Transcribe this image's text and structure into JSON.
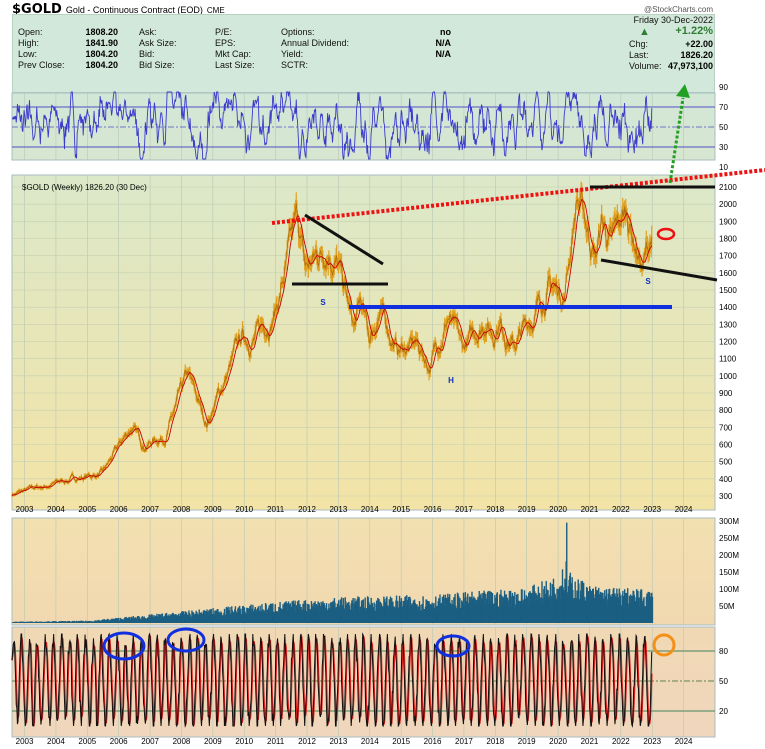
{
  "header": {
    "symbol": "$GOLD",
    "name": "Gold - Continuous Contract (EOD)",
    "exchange": "CME",
    "copyright": "@StockCharts.com"
  },
  "info": {
    "col1": [
      {
        "label": "Open:",
        "value": "1808.20"
      },
      {
        "label": "High:",
        "value": "1841.90"
      },
      {
        "label": "Low:",
        "value": "1804.20"
      },
      {
        "label": "Prev Close:",
        "value": "1804.20"
      }
    ],
    "col2": [
      {
        "label": "Ask:"
      },
      {
        "label": "Ask Size:"
      },
      {
        "label": "Bid:"
      },
      {
        "label": "Bid Size:"
      }
    ],
    "col3": [
      {
        "label": "P/E:"
      },
      {
        "label": "EPS:"
      },
      {
        "label": "Mkt Cap:"
      },
      {
        "label": "Last Size:"
      }
    ],
    "col4": [
      {
        "label": "Options:",
        "value": "no"
      },
      {
        "label": "Annual Dividend:",
        "value": "N/A"
      },
      {
        "label": "Yield:",
        "value": "N/A"
      },
      {
        "label": "SCTR:",
        "value": ""
      }
    ],
    "date": "Friday  30-Dec-2022",
    "pct": "+1.22%",
    "chg_label": "Chg:",
    "chg": "+22.00",
    "last_label": "Last:",
    "last": "1826.20",
    "vol_label": "Volume:",
    "volume": "47,973,100",
    "up_color": "#2e7d32"
  },
  "chart_data": [
    {
      "type": "line",
      "panel": "rsi",
      "yticks": [
        90,
        70,
        50,
        30,
        10
      ],
      "ylim": [
        0,
        100
      ],
      "levels": [
        70,
        50,
        30
      ],
      "color": "#3a3acc"
    },
    {
      "type": "line",
      "panel": "price",
      "title": "$GOLD (Weekly) 1826.20 (30 Dec)",
      "scale": "linear",
      "ylim": [
        250,
        2170
      ],
      "yticks": [
        300,
        400,
        500,
        600,
        700,
        800,
        900,
        1000,
        1100,
        1200,
        1300,
        1400,
        1500,
        1600,
        1700,
        1800,
        1900,
        2000,
        2100
      ],
      "x": [
        2002.6,
        2003.5,
        2004.5,
        2005.5,
        2006.4,
        2006.8,
        2007.5,
        2008.2,
        2008.8,
        2009.9,
        2010.5,
        2011.0,
        2011.7,
        2011.95,
        2012.7,
        2012.95,
        2013.5,
        2013.7,
        2014.0,
        2014.3,
        2014.9,
        2015.5,
        2015.9,
        2016.5,
        2016.95,
        2017.7,
        2017.95,
        2018.1,
        2018.6,
        2019.0,
        2019.7,
        2019.95,
        2020.2,
        2020.6,
        2021.2,
        2021.4,
        2021.7,
        2022.2,
        2022.7,
        2023.0
      ],
      "y": [
        310,
        350,
        400,
        430,
        700,
        600,
        660,
        980,
        720,
        1200,
        1250,
        1400,
        1880,
        1600,
        1780,
        1680,
        1250,
        1400,
        1200,
        1380,
        1150,
        1180,
        1060,
        1360,
        1130,
        1340,
        1260,
        1350,
        1180,
        1290,
        1520,
        1500,
        1480,
        2060,
        1700,
        1900,
        1750,
        1950,
        1630,
        1826
      ],
      "price_color": "#e0a020",
      "ma_color": "#cc0000",
      "annotations": {
        "labels": [
          "S",
          "H",
          "S"
        ],
        "label_color": "#1030c0"
      }
    },
    {
      "type": "bar",
      "panel": "volume",
      "yticks": [
        "300M",
        "250M",
        "200M",
        "150M",
        "100M",
        "50M"
      ],
      "ytick_values": [
        300,
        250,
        200,
        150,
        100,
        50
      ],
      "ylim": [
        0,
        310
      ],
      "x": [
        2002.6,
        2005.0,
        2008.0,
        2011.0,
        2013.0,
        2016.0,
        2019.0,
        2020.3,
        2021.0,
        2023.0
      ],
      "y": [
        3,
        5,
        25,
        45,
        55,
        60,
        75,
        110,
        80,
        70
      ],
      "color": "#1b5e82"
    },
    {
      "type": "line",
      "panel": "stochastic",
      "yticks": [
        80,
        50,
        20
      ],
      "ylim": [
        0,
        100
      ],
      "levels": [
        80,
        50,
        20
      ],
      "colors": [
        "#111111",
        "#dd2222"
      ]
    }
  ],
  "xaxis": {
    "ticks": [
      "2003",
      "2004",
      "2005",
      "2006",
      "2007",
      "2008",
      "2009",
      "2010",
      "2011",
      "2012",
      "2013",
      "2014",
      "2015",
      "2016",
      "2017",
      "2018",
      "2019",
      "2020",
      "2021",
      "2022",
      "2023",
      "2024"
    ]
  }
}
